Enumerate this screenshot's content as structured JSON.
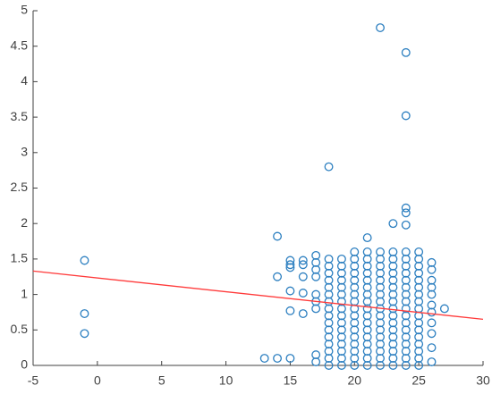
{
  "chart_data": {
    "type": "scatter",
    "color": "#2c7fc0",
    "xlim": [
      -5,
      30
    ],
    "ylim": [
      0,
      5
    ],
    "xticks": [
      -5,
      0,
      5,
      10,
      15,
      20,
      25,
      30
    ],
    "yticks": [
      0,
      0.5,
      1,
      1.5,
      2,
      2.5,
      3,
      3.5,
      4,
      4.5,
      5
    ],
    "x": [
      -1,
      -1,
      -1,
      13,
      14,
      15,
      14,
      14,
      15,
      15,
      15,
      15,
      15,
      16,
      16,
      16,
      16,
      16,
      18,
      21,
      22,
      24,
      24,
      24,
      24,
      24,
      23,
      27,
      26,
      26,
      17,
      17,
      17,
      17,
      17,
      17,
      17,
      17,
      17,
      26,
      26,
      26,
      26,
      26,
      26,
      26,
      26,
      26,
      18,
      18,
      18,
      18,
      18,
      18,
      18,
      18,
      18,
      18,
      18,
      18,
      18,
      18,
      18,
      18,
      19,
      19,
      19,
      19,
      19,
      19,
      19,
      19,
      19,
      19,
      19,
      19,
      19,
      19,
      19,
      19,
      20,
      20,
      20,
      20,
      20,
      20,
      20,
      20,
      20,
      20,
      20,
      20,
      20,
      20,
      20,
      20,
      20,
      21,
      21,
      21,
      21,
      21,
      21,
      21,
      21,
      21,
      21,
      21,
      21,
      21,
      21,
      21,
      21,
      21,
      22,
      22,
      22,
      22,
      22,
      22,
      22,
      22,
      22,
      22,
      22,
      22,
      22,
      22,
      22,
      22,
      22,
      23,
      23,
      23,
      23,
      23,
      23,
      23,
      23,
      23,
      23,
      23,
      23,
      23,
      23,
      23,
      23,
      23,
      24,
      24,
      24,
      24,
      24,
      24,
      24,
      24,
      24,
      24,
      24,
      24,
      24,
      24,
      24,
      24,
      24,
      25,
      25,
      25,
      25,
      25,
      25,
      25,
      25,
      25,
      25,
      25,
      25,
      25,
      25,
      25,
      25,
      25
    ],
    "y": [
      1.48,
      0.73,
      0.45,
      0.1,
      0.1,
      0.1,
      1.82,
      1.25,
      1.48,
      1.42,
      1.38,
      1.05,
      0.77,
      1.48,
      1.42,
      1.25,
      1.02,
      0.73,
      2.8,
      1.8,
      4.76,
      4.41,
      3.52,
      2.22,
      2.15,
      1.98,
      2.0,
      0.8,
      0.25,
      0.05,
      1.55,
      1.45,
      1.35,
      1.25,
      1.0,
      0.9,
      0.8,
      0.15,
      0.05,
      1.45,
      1.35,
      1.2,
      1.1,
      1.0,
      0.85,
      0.75,
      0.6,
      0.45,
      0,
      0.1,
      0.2,
      0.3,
      0.4,
      0.5,
      0.6,
      0.7,
      0.8,
      0.9,
      1,
      1.1,
      1.2,
      1.3,
      1.4,
      1.5,
      0,
      0.1,
      0.2,
      0.3,
      0.4,
      0.5,
      0.6,
      0.7,
      0.8,
      0.9,
      1,
      1.1,
      1.2,
      1.3,
      1.4,
      1.5,
      0,
      0.1,
      0.2,
      0.3,
      0.4,
      0.5,
      0.6,
      0.7,
      0.8,
      0.9,
      1,
      1.1,
      1.2,
      1.3,
      1.4,
      1.5,
      1.6,
      0,
      0.1,
      0.2,
      0.3,
      0.4,
      0.5,
      0.6,
      0.7,
      0.8,
      0.9,
      1,
      1.1,
      1.2,
      1.3,
      1.4,
      1.5,
      1.6,
      0,
      0.1,
      0.2,
      0.3,
      0.4,
      0.5,
      0.6,
      0.7,
      0.8,
      0.9,
      1,
      1.1,
      1.2,
      1.3,
      1.4,
      1.5,
      1.6,
      0,
      0.1,
      0.2,
      0.3,
      0.4,
      0.5,
      0.6,
      0.7,
      0.8,
      0.9,
      1,
      1.1,
      1.2,
      1.3,
      1.4,
      1.5,
      1.6,
      0,
      0.1,
      0.2,
      0.3,
      0.4,
      0.5,
      0.6,
      0.7,
      0.8,
      0.9,
      1,
      1.1,
      1.2,
      1.3,
      1.4,
      1.5,
      1.6,
      0,
      0.1,
      0.2,
      0.3,
      0.4,
      0.5,
      0.6,
      0.7,
      0.8,
      0.9,
      1,
      1.1,
      1.2,
      1.3,
      1.4,
      1.5,
      1.6
    ],
    "fit_line": {
      "color": "#ff3b3b",
      "x": [
        -5,
        30
      ],
      "y": [
        1.33,
        0.65
      ]
    }
  }
}
